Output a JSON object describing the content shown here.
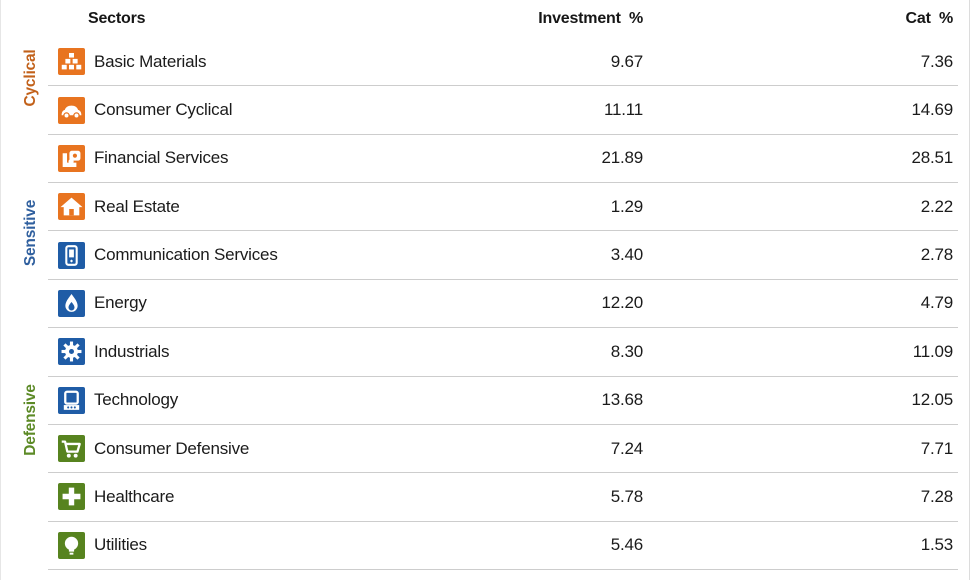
{
  "header": {
    "sectors": "Sectors",
    "investment": "Investment %",
    "cat": "Cat %"
  },
  "groups": [
    {
      "id": "cyclical",
      "label": "Cyclical",
      "label_color": "#C2611A",
      "icon_color": "#E87420"
    },
    {
      "id": "sensitive",
      "label": "Sensitive",
      "label_color": "#2F5F9E",
      "icon_color": "#1F5CA6"
    },
    {
      "id": "defensive",
      "label": "Defensive",
      "label_color": "#5C8A26",
      "icon_color": "#57831F"
    }
  ],
  "rows": [
    {
      "group": "cyclical",
      "icon": "basic-materials",
      "name": "Basic Materials",
      "investment": "9.67",
      "cat": "7.36"
    },
    {
      "group": "cyclical",
      "icon": "consumer-cyclical",
      "name": "Consumer Cyclical",
      "investment": "11.11",
      "cat": "14.69"
    },
    {
      "group": "cyclical",
      "icon": "financial-services",
      "name": "Financial Services",
      "investment": "21.89",
      "cat": "28.51"
    },
    {
      "group": "cyclical",
      "icon": "real-estate",
      "name": "Real Estate",
      "investment": "1.29",
      "cat": "2.22"
    },
    {
      "group": "sensitive",
      "icon": "communication-services",
      "name": "Communication Services",
      "investment": "3.40",
      "cat": "2.78"
    },
    {
      "group": "sensitive",
      "icon": "energy",
      "name": "Energy",
      "investment": "12.20",
      "cat": "4.79"
    },
    {
      "group": "sensitive",
      "icon": "industrials",
      "name": "Industrials",
      "investment": "8.30",
      "cat": "11.09"
    },
    {
      "group": "sensitive",
      "icon": "technology",
      "name": "Technology",
      "investment": "13.68",
      "cat": "12.05"
    },
    {
      "group": "defensive",
      "icon": "consumer-defensive",
      "name": "Consumer Defensive",
      "investment": "7.24",
      "cat": "7.71"
    },
    {
      "group": "defensive",
      "icon": "healthcare",
      "name": "Healthcare",
      "investment": "5.78",
      "cat": "7.28"
    },
    {
      "group": "defensive",
      "icon": "utilities",
      "name": "Utilities",
      "investment": "5.46",
      "cat": "1.53"
    }
  ],
  "colors": {
    "separator": "#CDCDCD",
    "text": "#1B1B1B"
  }
}
